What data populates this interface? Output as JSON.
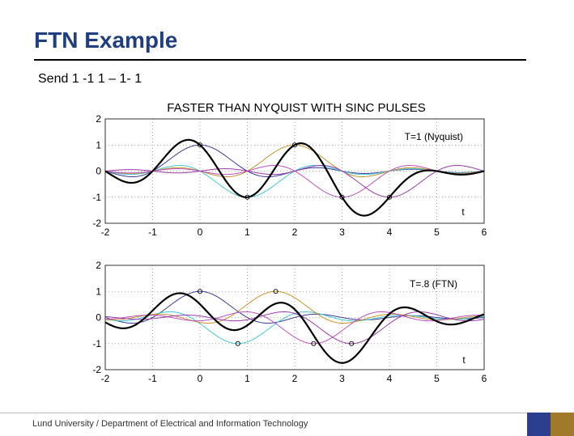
{
  "slide": {
    "title": "FTN Example",
    "subtitle": "Send 1 -1 1 – 1- 1",
    "footer": "Lund University / Department of Electrical and Information Technology"
  },
  "colors": {
    "title": "#1f3f7f",
    "footer_block_1": "#2a3f8f",
    "footer_block_2": "#a07a2a",
    "composite": "#000000",
    "pulse_1": "#3a3a9a",
    "pulse_2": "#40c8d8",
    "pulse_3": "#c8922a",
    "pulse_4": "#c050c0",
    "pulse_5": "#9a3aa8"
  },
  "chart_data": [
    {
      "type": "line",
      "title": "FASTER THAN NYQUIST WITH SINC PULSES",
      "annotation": "T=1 (Nyquist)",
      "xlabel": "t",
      "xlim": [
        -2,
        6
      ],
      "ylim": [
        -2,
        2
      ],
      "xticks": [
        "-2",
        "-1",
        "0",
        "1",
        "2",
        "3",
        "4",
        "5",
        "6"
      ],
      "yticks": [
        "2",
        "1",
        "0",
        "-1",
        "-2"
      ],
      "grid": true,
      "symbol_period": 1.0,
      "symbols": [
        1,
        -1,
        1,
        -1,
        -1
      ],
      "symbol_times": [
        0,
        1,
        2,
        3,
        4
      ],
      "series": [
        {
          "name": "composite",
          "color": "#000000",
          "width": 2.2
        },
        {
          "name": "pulse 1",
          "color": "#3a3a9a"
        },
        {
          "name": "pulse 2",
          "color": "#40c8d8"
        },
        {
          "name": "pulse 3",
          "color": "#c8922a"
        },
        {
          "name": "pulse 4",
          "color": "#c050c0"
        },
        {
          "name": "pulse 5",
          "color": "#9a3aa8"
        }
      ]
    },
    {
      "type": "line",
      "title": "",
      "annotation": "T=.8 (FTN)",
      "xlabel": "t",
      "xlim": [
        -2,
        6
      ],
      "ylim": [
        -2,
        2
      ],
      "xticks": [
        "-2",
        "-1",
        "0",
        "1",
        "2",
        "3",
        "4",
        "5",
        "6"
      ],
      "yticks": [
        "2",
        "1",
        "0",
        "-1",
        "-2"
      ],
      "grid": true,
      "symbol_period": 0.8,
      "symbols": [
        1,
        -1,
        1,
        -1,
        -1
      ],
      "symbol_times": [
        0,
        0.8,
        1.6,
        2.4,
        3.2
      ],
      "series": [
        {
          "name": "composite",
          "color": "#000000",
          "width": 2.2
        },
        {
          "name": "pulse 1",
          "color": "#3a3a9a"
        },
        {
          "name": "pulse 2",
          "color": "#40c8d8"
        },
        {
          "name": "pulse 3",
          "color": "#c8922a"
        },
        {
          "name": "pulse 4",
          "color": "#c050c0"
        },
        {
          "name": "pulse 5",
          "color": "#9a3aa8"
        }
      ]
    }
  ]
}
